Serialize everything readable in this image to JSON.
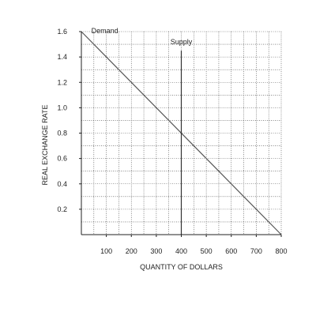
{
  "chart_data": {
    "type": "line",
    "title": "",
    "xlabel": "QUANTITY OF DOLLARS",
    "ylabel": "REAL EXCHANGE RATE",
    "xlim": [
      0,
      800
    ],
    "ylim": [
      0,
      1.6
    ],
    "x_ticks": [
      "100",
      "200",
      "300",
      "400",
      "500",
      "600",
      "700",
      "800"
    ],
    "y_ticks": [
      "0.2",
      "0.4",
      "0.6",
      "0.8",
      "1.0",
      "1.2",
      "1.4",
      "1.6"
    ],
    "grid": true,
    "series": [
      {
        "name": "Demand",
        "color": "#555555",
        "points": [
          [
            0,
            1.6
          ],
          [
            800,
            0
          ]
        ]
      },
      {
        "name": "Supply",
        "color": "#333333",
        "points": [
          [
            400,
            0
          ],
          [
            400,
            1.45
          ]
        ]
      }
    ]
  }
}
